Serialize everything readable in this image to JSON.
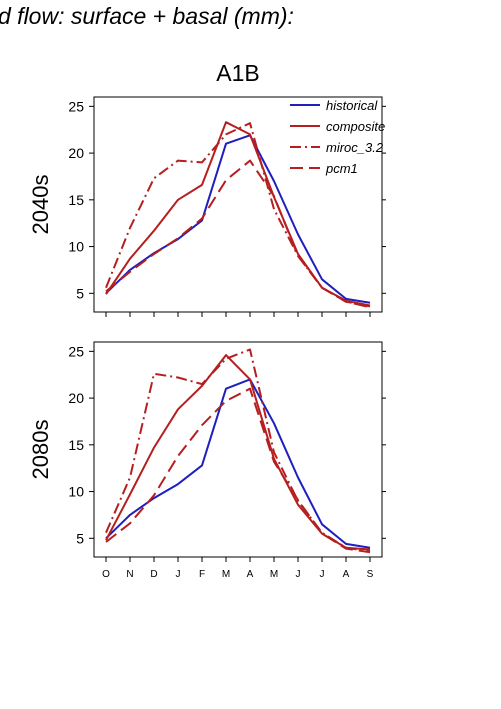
{
  "header_text": "d flow: surface + basal (mm):",
  "panel_title": "A1B",
  "chart_data": [
    {
      "type": "line",
      "ylabel": "2040s",
      "ylim": [
        3,
        26
      ],
      "yticks": [
        "5",
        "10",
        "15",
        "20",
        "25"
      ],
      "ytick_values": [
        5,
        10,
        15,
        20,
        25
      ],
      "categories": [
        "O",
        "N",
        "D",
        "J",
        "F",
        "M",
        "A",
        "M",
        "J",
        "J",
        "A",
        "S"
      ],
      "legend": {
        "placement": "top-right",
        "entries": [
          "historical",
          "composite",
          "miroc_3.2",
          "pcm1"
        ]
      },
      "series": [
        {
          "name": "historical",
          "color": "#1f1fbf",
          "dash": "solid",
          "values": [
            5.0,
            7.5,
            9.3,
            10.8,
            12.8,
            21.0,
            21.9,
            17.0,
            11.3,
            6.5,
            4.4,
            4.0
          ]
        },
        {
          "name": "composite",
          "color": "#b51f1f",
          "dash": "solid",
          "values": [
            4.9,
            8.7,
            11.7,
            15.0,
            16.6,
            23.3,
            22.0,
            15.3,
            9.2,
            5.6,
            4.2,
            3.7
          ]
        },
        {
          "name": "miroc_3.2",
          "color": "#b51f1f",
          "dash": "dashdot",
          "values": [
            5.6,
            12.0,
            17.3,
            19.2,
            19.0,
            22.0,
            23.2,
            14.0,
            9.0,
            5.6,
            4.1,
            3.6
          ]
        },
        {
          "name": "pcm1",
          "color": "#b51f1f",
          "dash": "longdash",
          "values": [
            5.2,
            7.3,
            9.2,
            10.9,
            13.0,
            17.1,
            19.2,
            15.4,
            9.0,
            5.6,
            4.1,
            3.5
          ]
        }
      ]
    },
    {
      "type": "line",
      "ylabel": "2080s",
      "ylim": [
        3,
        26
      ],
      "yticks": [
        "5",
        "10",
        "15",
        "20",
        "25"
      ],
      "ytick_values": [
        5,
        10,
        15,
        20,
        25
      ],
      "categories": [
        "O",
        "N",
        "D",
        "J",
        "F",
        "M",
        "A",
        "M",
        "J",
        "J",
        "A",
        "S"
      ],
      "series": [
        {
          "name": "historical",
          "color": "#1f1fbf",
          "dash": "solid",
          "values": [
            5.0,
            7.5,
            9.3,
            10.8,
            12.8,
            21.0,
            22.0,
            17.3,
            11.5,
            6.5,
            4.4,
            4.0
          ]
        },
        {
          "name": "composite",
          "color": "#b51f1f",
          "dash": "solid",
          "values": [
            4.8,
            9.7,
            14.7,
            18.8,
            21.3,
            24.6,
            22.0,
            13.5,
            8.6,
            5.5,
            4.0,
            3.8
          ]
        },
        {
          "name": "miroc_3.2",
          "color": "#b51f1f",
          "dash": "dashdot",
          "values": [
            5.6,
            11.5,
            22.6,
            22.2,
            21.5,
            24.2,
            25.2,
            14.2,
            9.0,
            5.6,
            4.0,
            3.6
          ]
        },
        {
          "name": "pcm1",
          "color": "#b51f1f",
          "dash": "longdash",
          "values": [
            4.6,
            6.6,
            9.6,
            13.8,
            17.1,
            19.7,
            21.0,
            13.2,
            9.1,
            5.5,
            3.9,
            3.5
          ]
        }
      ]
    }
  ]
}
